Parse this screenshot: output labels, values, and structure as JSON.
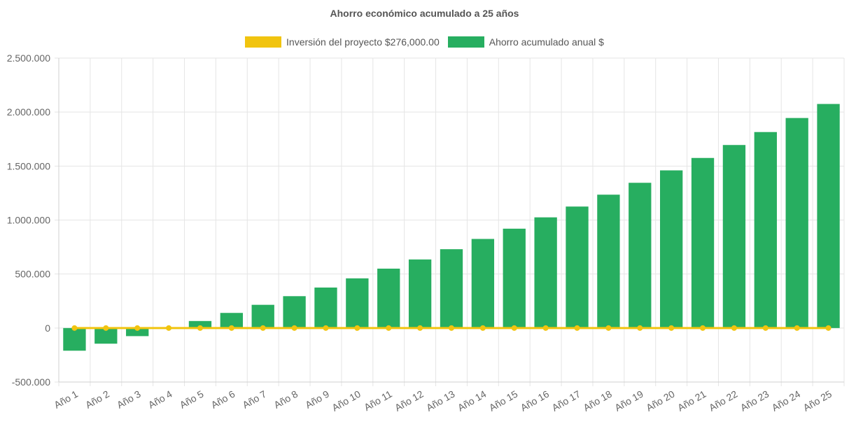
{
  "chart_data": {
    "type": "bar",
    "title": "Ahorro económico acumulado a 25 años",
    "categories": [
      "Año 1",
      "Año 2",
      "Año 3",
      "Año 4",
      "Año 5",
      "Año 6",
      "Año 7",
      "Año 8",
      "Año 9",
      "Año 10",
      "Año 11",
      "Año 12",
      "Año 13",
      "Año 14",
      "Año 15",
      "Año 16",
      "Año 17",
      "Año 18",
      "Año 19",
      "Año 20",
      "Año 21",
      "Año 22",
      "Año 23",
      "Año 24",
      "Año 25"
    ],
    "series": [
      {
        "name": "Inversión del proyecto $276,000.00",
        "type": "line",
        "color": "#f1c40f",
        "values": [
          0,
          0,
          0,
          0,
          0,
          0,
          0,
          0,
          0,
          0,
          0,
          0,
          0,
          0,
          0,
          0,
          0,
          0,
          0,
          0,
          0,
          0,
          0,
          0,
          0
        ]
      },
      {
        "name": "Ahorro acumulado anual $",
        "type": "bar",
        "color": "#27ae60",
        "values": [
          -210000,
          -145000,
          -75000,
          0,
          65000,
          140000,
          215000,
          295000,
          375000,
          460000,
          550000,
          635000,
          730000,
          825000,
          920000,
          1025000,
          1125000,
          1235000,
          1345000,
          1460000,
          1575000,
          1695000,
          1815000,
          1945000,
          2075000
        ]
      }
    ],
    "ylim": [
      -500000,
      2500000
    ],
    "yticks": [
      "2.500.000",
      "2.000.000",
      "1.500.000",
      "1.000.000",
      "500.000",
      "0",
      "-500.000"
    ],
    "ytick_values": [
      2500000,
      2000000,
      1500000,
      1000000,
      500000,
      0,
      -500000
    ],
    "grid": true,
    "legend_position": "top"
  }
}
